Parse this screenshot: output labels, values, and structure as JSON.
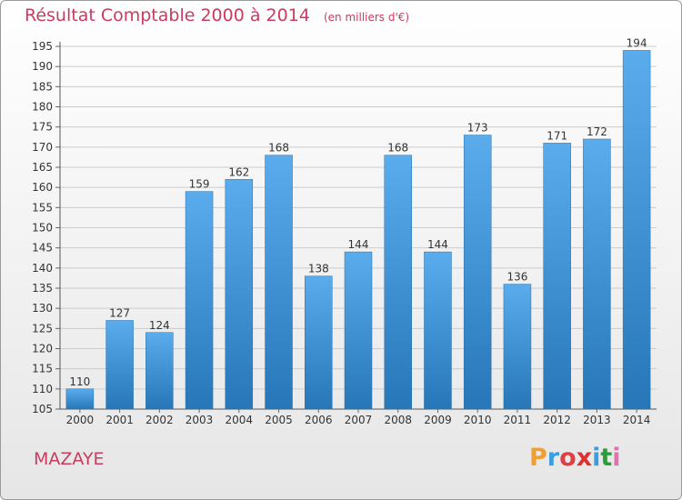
{
  "title": "Résultat Comptable 2000 à 2014",
  "subtitle": "(en milliers d'€)",
  "commune": "MAZAYE",
  "brand": {
    "text": "Proxiti",
    "colors": [
      "#f0a030",
      "#3a9de0",
      "#e04040",
      "#e03030",
      "#3a9de0",
      "#2a9e3a",
      "#e070b0"
    ]
  },
  "colors": {
    "bar_top": "#5aacec",
    "bar_bottom": "#2777b8",
    "title": "#c93b60",
    "grid": "#cccccc"
  },
  "chart_data": {
    "type": "bar",
    "title": "Résultat Comptable 2000 à 2014",
    "subtitle": "(en milliers d'€)",
    "categories": [
      "2000",
      "2001",
      "2002",
      "2003",
      "2004",
      "2005",
      "2006",
      "2007",
      "2008",
      "2009",
      "2010",
      "2011",
      "2012",
      "2013",
      "2014"
    ],
    "values": [
      110,
      127,
      124,
      159,
      162,
      168,
      138,
      144,
      168,
      144,
      173,
      136,
      171,
      172,
      194
    ],
    "ylim": [
      105,
      195
    ],
    "yticks": [
      105,
      110,
      115,
      120,
      125,
      130,
      135,
      140,
      145,
      150,
      155,
      160,
      165,
      170,
      175,
      180,
      185,
      190,
      195
    ],
    "grid": true,
    "legend": "none"
  }
}
